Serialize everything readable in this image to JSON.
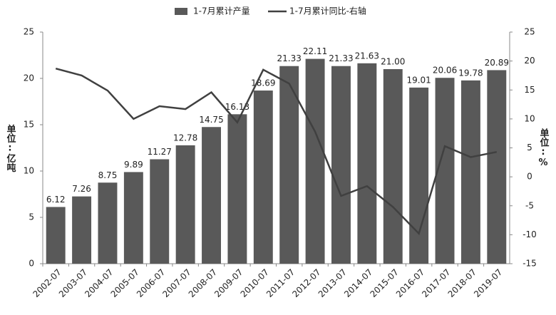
{
  "chart_data": {
    "type": "bar-line",
    "categories": [
      "2002-07",
      "2003-07",
      "2004-07",
      "2005-07",
      "2006-07",
      "2007-07",
      "2008-07",
      "2009-07",
      "2010-07",
      "2011-07",
      "2012-07",
      "2013-07",
      "2014-07",
      "2015-07",
      "2016-07",
      "2017-07",
      "2018-07",
      "2019-07"
    ],
    "series": [
      {
        "name": "1-7月累计产量",
        "type": "bar",
        "color": "#595959",
        "values": [
          6.12,
          7.26,
          8.75,
          9.89,
          11.27,
          12.78,
          14.75,
          16.13,
          18.69,
          21.33,
          22.11,
          21.33,
          21.63,
          21.0,
          19.01,
          20.06,
          19.78,
          20.89
        ],
        "value_labels": [
          "6.12",
          "7.26",
          "8.75",
          "9.89",
          "11.27",
          "12.78",
          "14.75",
          "16.13",
          "18.69",
          "21.33",
          "22.11",
          "21.33",
          "21.63",
          "21.00",
          "19.01",
          "20.06",
          "19.78",
          "20.89"
        ]
      },
      {
        "name": "1-7月累计同比-右轴",
        "type": "line",
        "axis": "y2",
        "color": "#404040",
        "values": [
          18.7,
          17.5,
          14.9,
          10.0,
          12.2,
          11.7,
          14.6,
          9.4,
          18.5,
          16.1,
          7.8,
          -3.3,
          -1.6,
          -5.2,
          -9.8,
          5.3,
          3.4,
          4.3
        ]
      }
    ],
    "ylabel": "单位:亿吨",
    "y2label": "单位:%",
    "ylim": [
      0,
      25
    ],
    "yticks": [
      0,
      5,
      10,
      15,
      20,
      25
    ],
    "y2lim": [
      -15,
      25
    ],
    "y2ticks": [
      -15,
      -10,
      -5,
      0,
      5,
      10,
      15,
      20,
      25
    ],
    "legend": "top"
  }
}
